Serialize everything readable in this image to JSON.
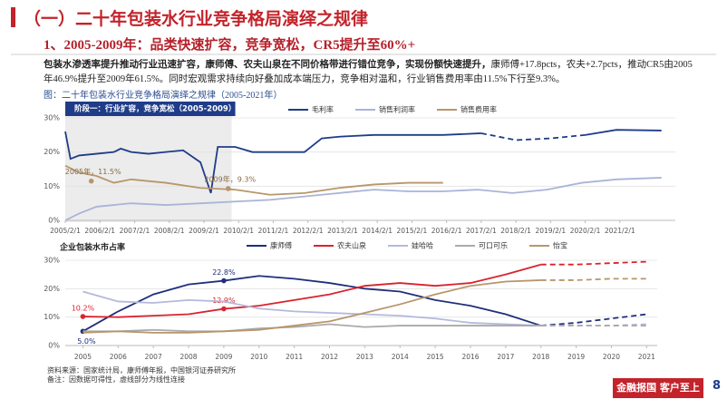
{
  "header": {
    "title": "（一）二十年包装水行业竞争格局演绎之规律",
    "subtitle": "1、2005-2009年：品类快速扩容，竞争宽松，CR5提升至60%+"
  },
  "paragraph": {
    "bold": "包装水渗透率提升推动行业迅速扩容，康师傅、农夫山泉在不同价格带进行错位竞争，实现份额快速提升，",
    "text": "康师傅+17.8pcts，农夫+2.7pcts，推动CR5由2005年46.9%提升至2009年61.5%。同时宏观需求持续向好叠加成本端压力，竞争相对温和，行业销售费用率由11.5%下行至9.3%。"
  },
  "caption": "图：二十年包装水行业竞争格局演绎之规律（2005-2021年）",
  "sources": [
    "资料来源：国家统计局，康师傅年报，中国银河证券研究所",
    "备注：因数据可得性，虚线部分为线性连接"
  ],
  "footer": {
    "slogan": "金融报国 客户至上",
    "page": "8"
  },
  "chart_data": [
    {
      "type": "line",
      "stage": {
        "text": "阶段一：行业扩容，竞争宽松（2005-2009）",
        "x_range": [
          2005.1,
          2009.9
        ]
      },
      "xlim": [
        2005.1,
        2022.7
      ],
      "xticks": [
        {
          "value": 2005.1,
          "label": "2005/2/1"
        },
        {
          "value": 2006.1,
          "label": "2006/2/1"
        },
        {
          "value": 2007.1,
          "label": "2007/2/1"
        },
        {
          "value": 2008.1,
          "label": "2008/2/1"
        },
        {
          "value": 2009.1,
          "label": "2009/2/1"
        },
        {
          "value": 2010.1,
          "label": "2010/2/1"
        },
        {
          "value": 2011.1,
          "label": "2011/2/1"
        },
        {
          "value": 2012.1,
          "label": "2012/2/1"
        },
        {
          "value": 2013.1,
          "label": "2013/2/1"
        },
        {
          "value": 2014.1,
          "label": "2014/2/1"
        },
        {
          "value": 2015.1,
          "label": "2015/2/1"
        },
        {
          "value": 2016.1,
          "label": "2016/2/1"
        },
        {
          "value": 2017.1,
          "label": "2017/2/1"
        },
        {
          "value": 2018.1,
          "label": "2018/2/1"
        },
        {
          "value": 2019.1,
          "label": "2019/2/1"
        },
        {
          "value": 2020.1,
          "label": "2020/2/1"
        },
        {
          "value": 2021.1,
          "label": "2021/2/1"
        }
      ],
      "ylim": [
        0,
        30
      ],
      "yticks": [
        {
          "value": 0,
          "label": "0%"
        },
        {
          "value": 10,
          "label": "10%"
        },
        {
          "value": 20,
          "label": "20%"
        },
        {
          "value": 30,
          "label": "30%"
        }
      ],
      "grid": true,
      "series": [
        {
          "name": "毛利率",
          "color": "#1f3c88",
          "dashed_range": [
            2017.1,
            2020.1
          ],
          "x": [
            2005.1,
            2005.25,
            2005.5,
            2006.0,
            2006.5,
            2006.7,
            2007.0,
            2007.5,
            2008.0,
            2008.5,
            2009.0,
            2009.3,
            2009.5,
            2010.0,
            2010.5,
            2011.0,
            2012.0,
            2012.5,
            2013.0,
            2014.0,
            2015.0,
            2016.0,
            2017.1,
            2018.1,
            2019.1,
            2020.1,
            2021.0,
            2022.3
          ],
          "values": [
            26,
            18,
            19,
            19.5,
            20,
            21,
            20,
            19.5,
            20,
            20.5,
            17,
            8,
            21.5,
            21.5,
            20,
            20,
            20,
            24,
            24.5,
            25,
            25,
            25,
            25.5,
            23.5,
            24,
            25,
            26.5,
            26.3
          ]
        },
        {
          "name": "销售利润率",
          "color": "#a9b4d8",
          "x": [
            2005.1,
            2005.5,
            2006.0,
            2007.0,
            2008.0,
            2009.0,
            2010.0,
            2011.0,
            2012.0,
            2013.0,
            2014.0,
            2015.0,
            2016.0,
            2017.0,
            2018.0,
            2019.0,
            2020.0,
            2021.0,
            2022.3
          ],
          "values": [
            0,
            2,
            4,
            5,
            4.5,
            5,
            5.5,
            6,
            7,
            8,
            9,
            8.5,
            8.5,
            9,
            8,
            9,
            11,
            12,
            12.5
          ]
        },
        {
          "name": "销售费用率",
          "color": "#b8966b",
          "x": [
            2005.1,
            2005.5,
            2006.0,
            2006.5,
            2007.0,
            2008.0,
            2009.0,
            2010.0,
            2011.0,
            2012.0,
            2013.0,
            2014.0,
            2015.0,
            2016.0
          ],
          "values": [
            16,
            14,
            13,
            11,
            12,
            11,
            9.5,
            9,
            7.5,
            8,
            9.5,
            10.5,
            11,
            11
          ]
        }
      ],
      "annotations": [
        {
          "text": "2005年，11.5%",
          "x": 2005.85,
          "y": 11.5
        },
        {
          "text": "2009年，9.3%",
          "x": 2009.8,
          "y": 9.3
        }
      ]
    },
    {
      "type": "line",
      "title": "企业包装水市占率",
      "x": [
        2005,
        2006,
        2007,
        2008,
        2009,
        2010,
        2011,
        2012,
        2013,
        2014,
        2015,
        2016,
        2017,
        2018,
        2019,
        2020,
        2021
      ],
      "xlim": [
        2004.5,
        2021.3
      ],
      "xticks": [
        2005,
        2006,
        2007,
        2008,
        2009,
        2010,
        2011,
        2012,
        2013,
        2014,
        2015,
        2016,
        2017,
        2018,
        2019,
        2020,
        2021
      ],
      "ylim": [
        0,
        30
      ],
      "yticks": [
        {
          "value": 0,
          "label": "0%"
        },
        {
          "value": 10,
          "label": "10%"
        },
        {
          "value": 20,
          "label": "20%"
        },
        {
          "value": 30,
          "label": "30%"
        }
      ],
      "grid": true,
      "series": [
        {
          "name": "康师傅",
          "color": "#1f2f7a",
          "dashed_range": [
            2018,
            2021
          ],
          "values": [
            5,
            12,
            18,
            21.5,
            22.8,
            24.5,
            23.5,
            22,
            20,
            19,
            16,
            14,
            11,
            7,
            8,
            9.5,
            11
          ],
          "value_labels": [
            "5.0%",
            null,
            null,
            null,
            "22.8%",
            null,
            null,
            null,
            null,
            null,
            null,
            null,
            null,
            null,
            null,
            null,
            null
          ]
        },
        {
          "name": "农夫山泉",
          "color": "#d9232e",
          "dashed_range": [
            2018,
            2021
          ],
          "values": [
            10.2,
            10,
            10.5,
            11,
            12.9,
            14,
            16,
            18,
            21,
            22,
            21,
            22,
            25,
            28.5,
            28.5,
            29,
            29.5
          ],
          "value_labels": [
            "10.2%",
            null,
            null,
            null,
            "12.9%",
            null,
            null,
            null,
            null,
            null,
            null,
            null,
            null,
            null,
            null,
            null,
            null
          ]
        },
        {
          "name": "娃哈哈",
          "color": "#b5b9dc",
          "dashed_range": [
            2018,
            2021
          ],
          "values": [
            19,
            15.5,
            15,
            16,
            15.5,
            13,
            12,
            11.5,
            11,
            10.5,
            9.5,
            8,
            7.5,
            7,
            7,
            7,
            7.5
          ]
        },
        {
          "name": "可口可乐",
          "color": "#aaaaaa",
          "dashed_range": [
            2018,
            2021
          ],
          "values": [
            5,
            5,
            5.5,
            5,
            5,
            6,
            6.5,
            7.5,
            6.5,
            7,
            7,
            7,
            7,
            7,
            7,
            7,
            7
          ]
        },
        {
          "name": "怡宝",
          "color": "#b8966b",
          "dashed_range": [
            2018,
            2021
          ],
          "values": [
            4.5,
            5,
            4.5,
            4.5,
            5,
            5.5,
            7,
            8.5,
            11.5,
            14.5,
            18,
            21,
            22.5,
            23,
            23,
            23.5,
            23.5
          ]
        }
      ]
    }
  ]
}
